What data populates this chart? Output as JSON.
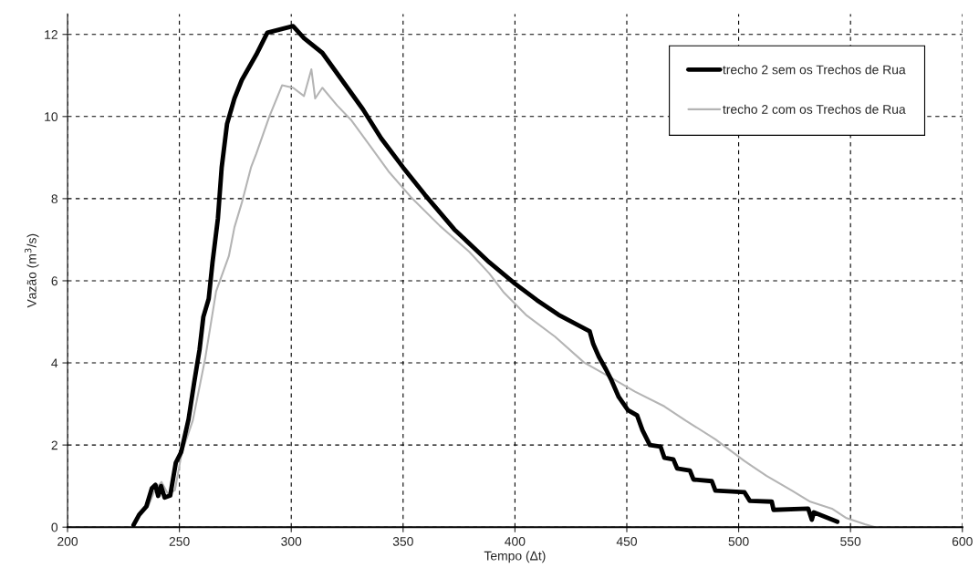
{
  "chart_data": {
    "type": "line",
    "xlabel": "Tempo (Δt)",
    "ylabel": "Vazão (m$^{3}$/s)",
    "xlim": [
      200,
      600
    ],
    "xticks": [
      200,
      250,
      300,
      350,
      400,
      450,
      500,
      550,
      600
    ],
    "ylim": [
      0,
      12.5
    ],
    "yticks": [
      0,
      2,
      4,
      6,
      8,
      10,
      12
    ],
    "grid": true,
    "legend": "top right",
    "line_style": "solid",
    "marker": "none",
    "series": [
      {
        "name": "trecho 2 sem os Trechos de Rua",
        "color": "#000000",
        "x": [
          229.5,
          232,
          235.2,
          237.7,
          239.3,
          240.5,
          241.8,
          243.4,
          245.9,
          248.4,
          250.8,
          254.1,
          256.6,
          259,
          260.7,
          263.1,
          264.8,
          267.2,
          268.9,
          271.3,
          274.6,
          277.9,
          284.4,
          289.3,
          300.8,
          305.7,
          313.9,
          323.8,
          332,
          340.2,
          350,
          359.8,
          372.9,
          388.5,
          400,
          409.8,
          419.5,
          433.4,
          435,
          437.5,
          440.7,
          443.2,
          446.4,
          450.5,
          454.6,
          457,
          460.3,
          465.1,
          466.8,
          470.8,
          472.5,
          478.2,
          479.8,
          488,
          489.6,
          502.6,
          505,
          514.8,
          515.6,
          531.1,
          532.7,
          533.6,
          544.1
        ],
        "values": [
          0.05,
          0.3,
          0.5,
          0.95,
          1.03,
          0.76,
          1.0,
          0.72,
          0.77,
          1.57,
          1.83,
          2.63,
          3.52,
          4.32,
          5.12,
          5.56,
          6.45,
          7.51,
          8.76,
          9.82,
          10.44,
          10.89,
          11.51,
          12.04,
          12.2,
          11.91,
          11.55,
          10.8,
          10.18,
          9.47,
          8.76,
          8.09,
          7.25,
          6.45,
          5.93,
          5.53,
          5.17,
          4.77,
          4.46,
          4.15,
          3.84,
          3.57,
          3.17,
          2.85,
          2.72,
          2.36,
          2.0,
          1.96,
          1.69,
          1.65,
          1.43,
          1.38,
          1.16,
          1.12,
          0.89,
          0.85,
          0.64,
          0.62,
          0.42,
          0.45,
          0.18,
          0.36,
          0.13
        ]
      },
      {
        "name": "trecho 2 com os Trechos de Rua",
        "color": "#b4b4b4",
        "x": [
          236,
          239,
          242,
          245,
          248,
          251,
          256,
          261.5,
          266.4,
          272.1,
          274.6,
          277.9,
          282,
          284.4,
          290.2,
          295.9,
          300.8,
          305.7,
          309,
          310.7,
          313.9,
          320.5,
          327,
          335.2,
          343.4,
          353.3,
          366.4,
          379.5,
          388.5,
          395.1,
          404.9,
          417.9,
          430.9,
          442.3,
          453.7,
          466.8,
          476.5,
          489.6,
          502.6,
          512.4,
          523.8,
          532,
          541.7,
          548.2,
          556.4,
          561
        ],
        "values": [
          0.5,
          0.9,
          1.1,
          0.8,
          0.9,
          1.8,
          2.6,
          4.1,
          5.74,
          6.6,
          7.3,
          7.9,
          8.76,
          9.1,
          10.0,
          10.76,
          10.7,
          10.5,
          11.15,
          10.44,
          10.7,
          10.27,
          9.9,
          9.29,
          8.67,
          8.05,
          7.34,
          6.71,
          6.18,
          5.71,
          5.17,
          4.64,
          4.01,
          3.66,
          3.3,
          2.94,
          2.59,
          2.14,
          1.61,
          1.25,
          0.89,
          0.62,
          0.45,
          0.22,
          0.07,
          0
        ]
      }
    ]
  }
}
